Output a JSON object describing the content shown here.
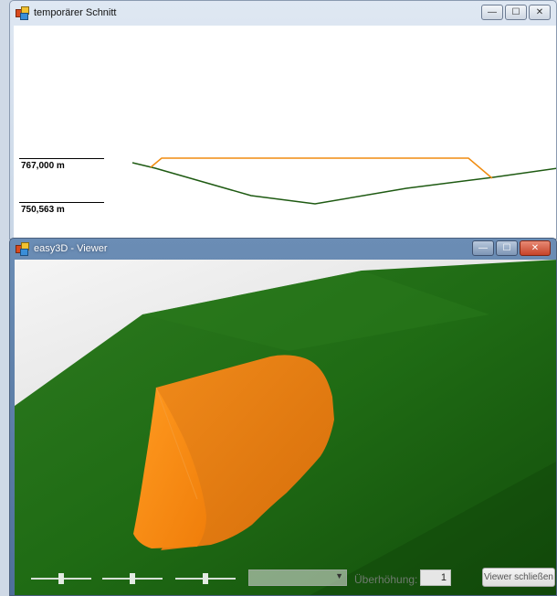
{
  "section_window": {
    "title": "temporärer Schnitt",
    "buttons": {
      "minimize": "—",
      "maximize": "☐",
      "close": "✕"
    },
    "levels": [
      {
        "label": "767,000 m"
      },
      {
        "label": "750,563 m"
      }
    ],
    "colors": {
      "terrain_line": "#1e5a12",
      "body_line": "#f08c10"
    }
  },
  "viewer_window": {
    "title": "easy3D - Viewer",
    "buttons": {
      "minimize": "—",
      "maximize": "☐",
      "close": "✕"
    },
    "colors": {
      "terrain": "#1f6b14",
      "body": "#f48814"
    },
    "controls": {
      "dropdown_value": "",
      "ueberhoehung_label": "Überhöhung:",
      "ueberhoehung_value": "1",
      "close_button_label": "Viewer schließen"
    }
  }
}
